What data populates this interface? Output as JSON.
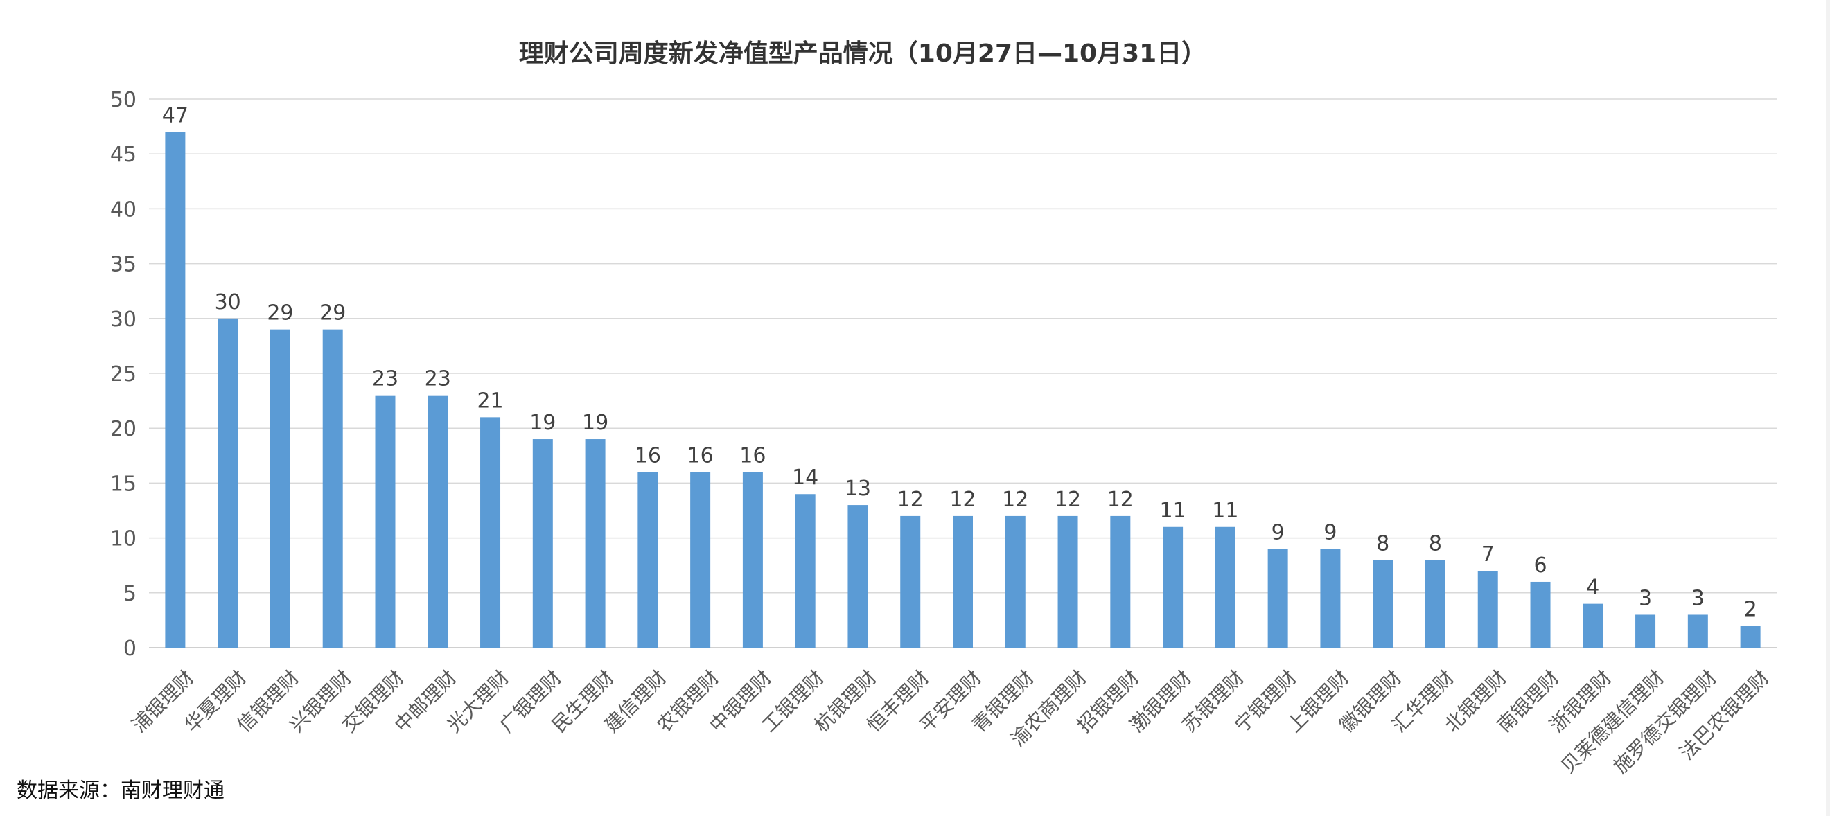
{
  "chart_data": {
    "type": "bar",
    "title": "理财公司周度新发净值型产品情况（10月27日—10月31日）",
    "categories": [
      "浦银理财",
      "华夏理财",
      "信银理财",
      "兴银理财",
      "交银理财",
      "中邮理财",
      "光大理财",
      "广银理财",
      "民生理财",
      "建信理财",
      "农银理财",
      "中银理财",
      "工银理财",
      "杭银理财",
      "恒丰理财",
      "平安理财",
      "青银理财",
      "渝农商理财",
      "招银理财",
      "渤银理财",
      "苏银理财",
      "宁银理财",
      "上银理财",
      "徽银理财",
      "汇华理财",
      "北银理财",
      "南银理财",
      "浙银理财",
      "贝莱德建信理财",
      "施罗德交银理财",
      "法巴农银理财"
    ],
    "values": [
      47,
      30,
      29,
      29,
      23,
      23,
      21,
      19,
      19,
      16,
      16,
      16,
      14,
      13,
      12,
      12,
      12,
      12,
      12,
      11,
      11,
      9,
      9,
      8,
      8,
      7,
      6,
      4,
      3,
      3,
      2
    ],
    "ylim": [
      0,
      50
    ],
    "yticks": [
      0,
      5,
      10,
      15,
      20,
      25,
      30,
      35,
      40,
      45,
      50
    ],
    "grid": true,
    "data_labels": true,
    "bar_color": "#5B9BD5",
    "xlabel": "",
    "ylabel": ""
  },
  "source": "数据来源：南财理财通"
}
